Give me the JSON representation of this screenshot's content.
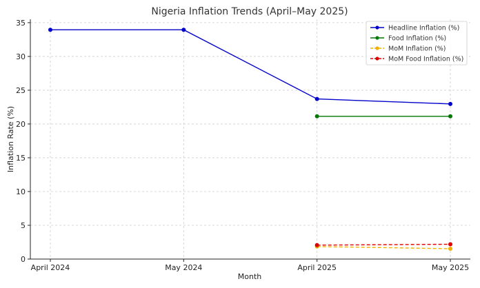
{
  "chart_data": {
    "type": "line",
    "title": "Nigeria Inflation Trends (April–May 2025)",
    "xlabel": "Month",
    "ylabel": "Inflation Rate (%)",
    "categories": [
      "April 2024",
      "May 2024",
      "April 2025",
      "May 2025"
    ],
    "ylim": [
      0,
      35.5
    ],
    "yticks": [
      0,
      5,
      10,
      15,
      20,
      25,
      30,
      35
    ],
    "grid": true,
    "legend_position": "top-right",
    "series": [
      {
        "name": "Headline Inflation (%)",
        "color": "#0000cc",
        "dashed": false,
        "values": [
          33.95,
          33.95,
          23.71,
          22.97
        ]
      },
      {
        "name": "Food Inflation (%)",
        "color": "#007700",
        "dashed": false,
        "values": [
          null,
          null,
          21.14,
          21.14
        ]
      },
      {
        "name": "MoM Inflation (%)",
        "color": "#f0b000",
        "dashed": true,
        "values": [
          null,
          null,
          1.86,
          1.53
        ]
      },
      {
        "name": "MoM Food Inflation (%)",
        "color": "#dd0000",
        "dashed": true,
        "values": [
          null,
          null,
          2.06,
          2.19
        ]
      }
    ]
  }
}
